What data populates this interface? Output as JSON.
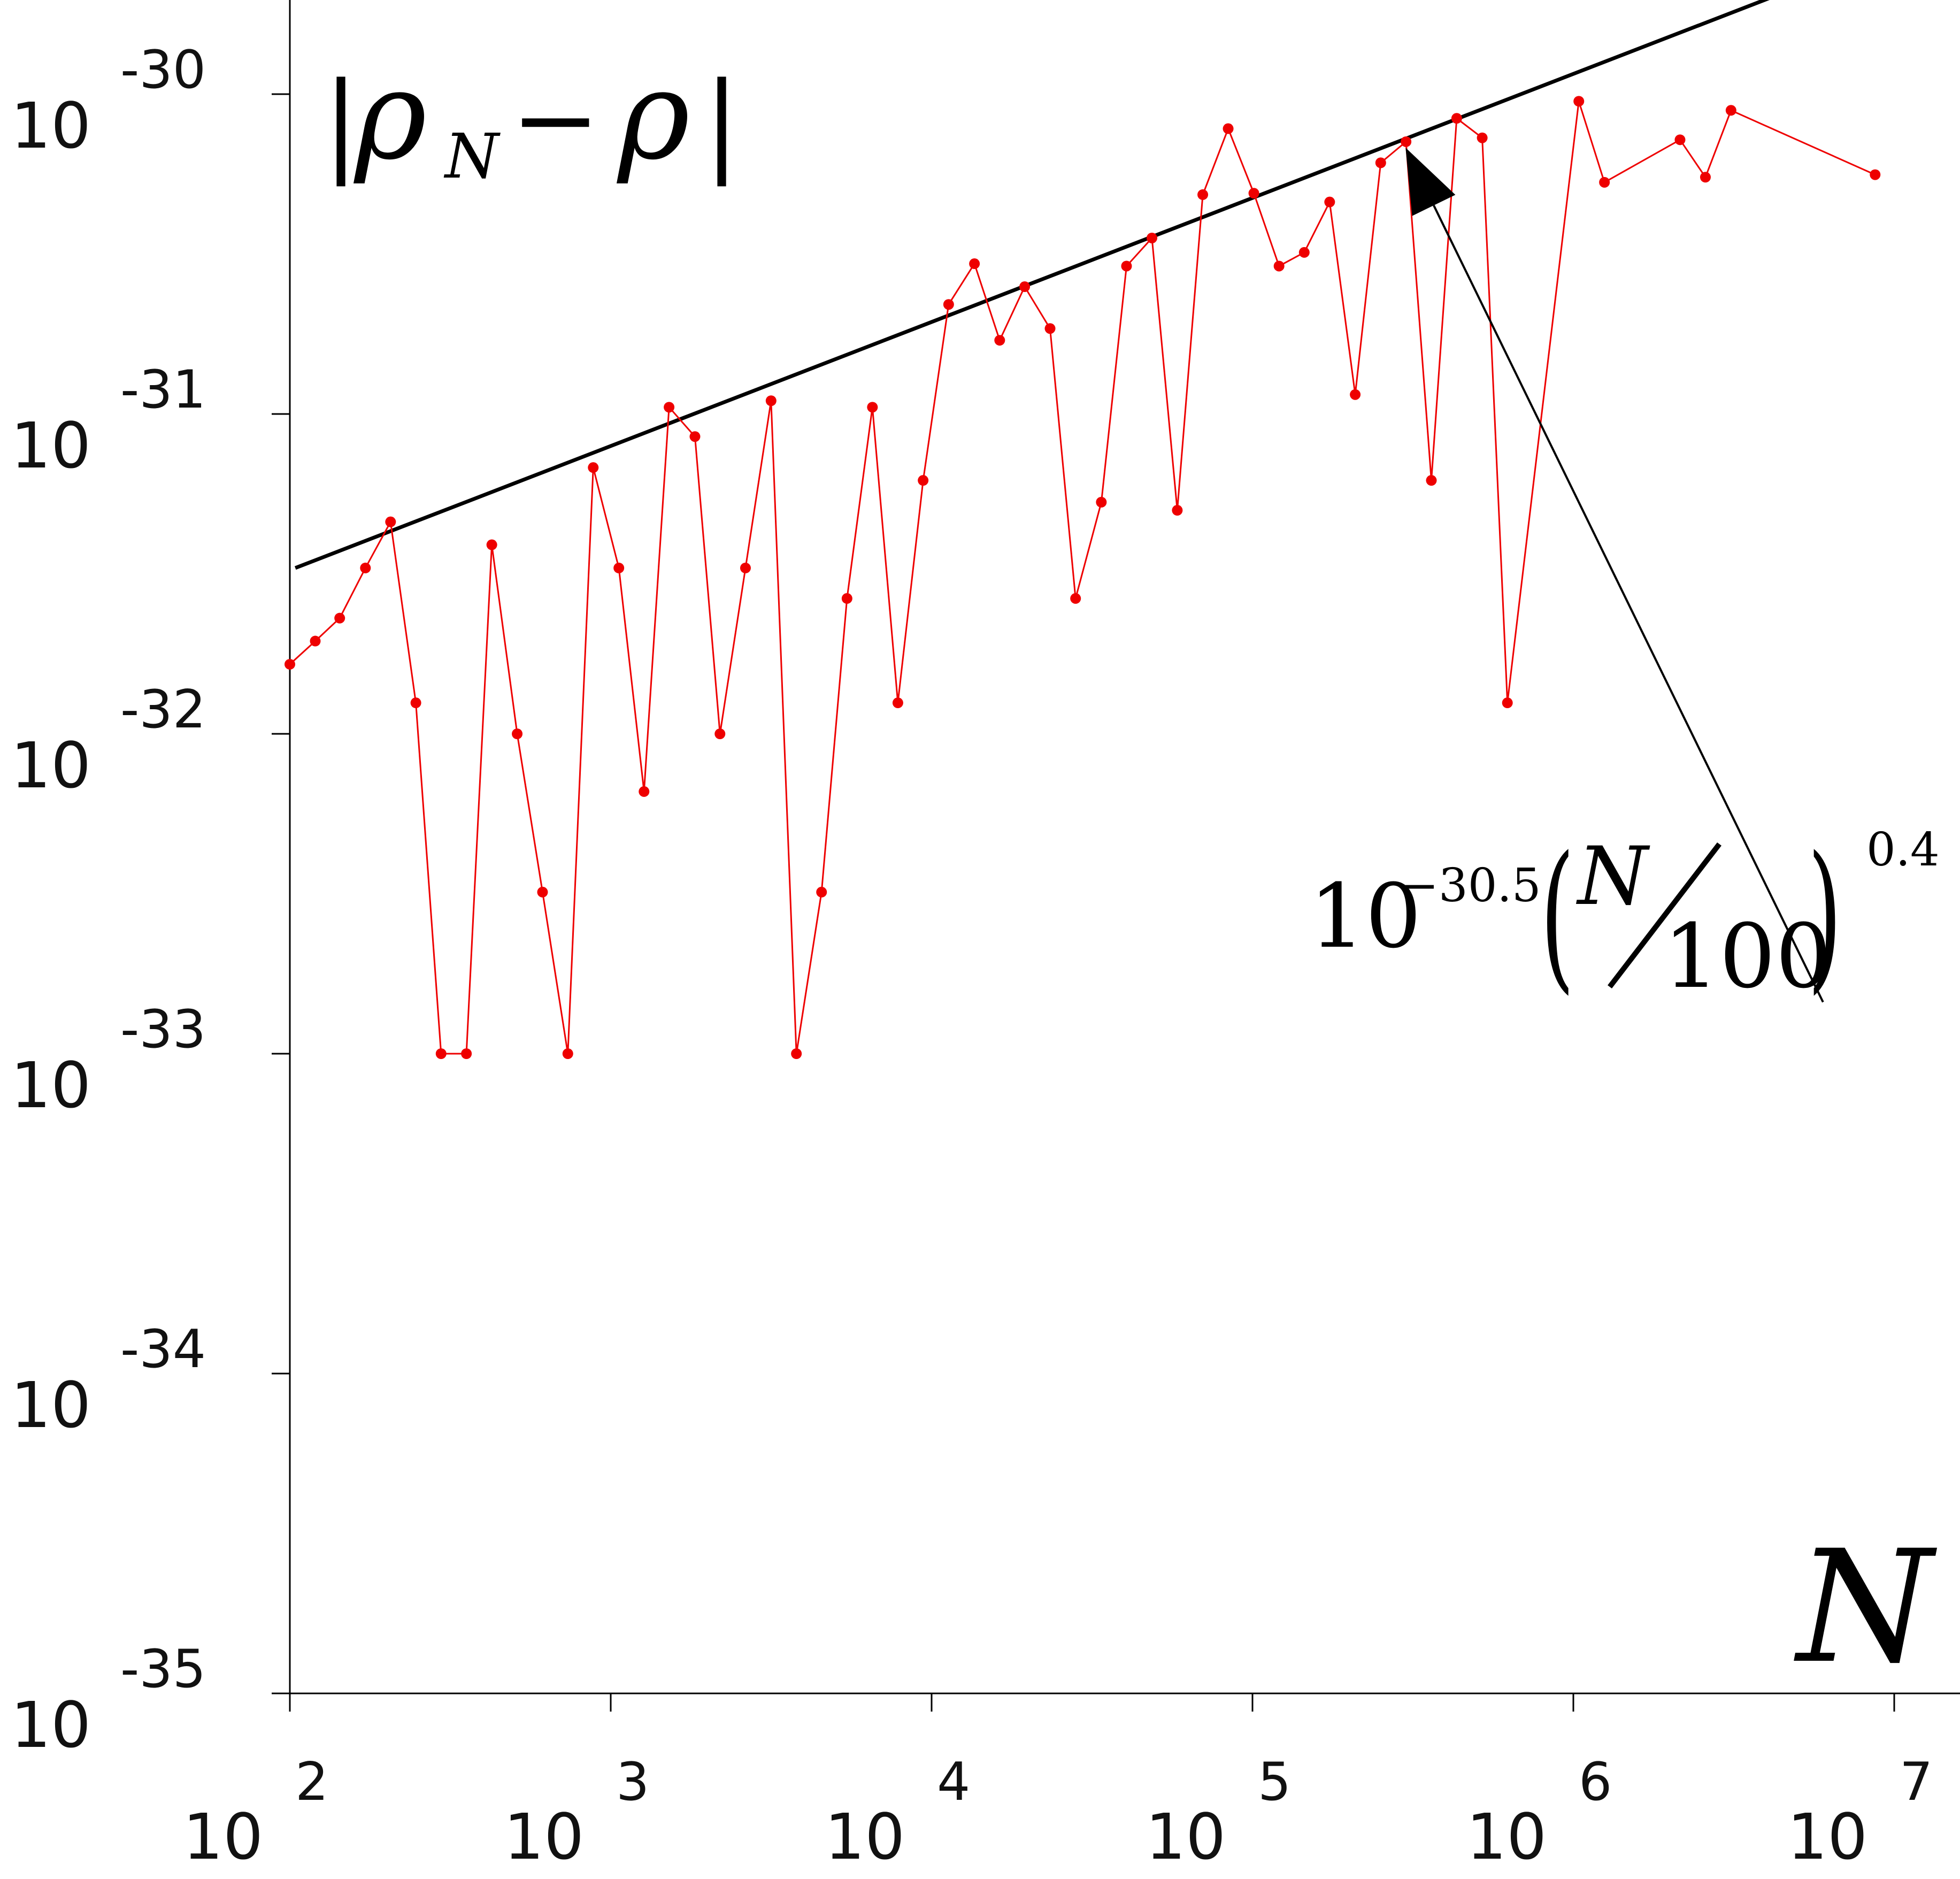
{
  "chart_data": {
    "type": "line",
    "title": "|ρ_N − ρ|",
    "title_parts": {
      "bar_left": "|",
      "rho": "ρ",
      "sub": "N",
      "minus": "−",
      "rho2": "ρ",
      "bar_right": "|"
    },
    "xlabel": "N",
    "ylabel": "",
    "x_scale": "log",
    "y_scale": "log",
    "xlim": [
      100,
      14000000
    ],
    "ylim": [
      1e-35,
      1.5e-30
    ],
    "x_ticks": [
      {
        "base": "10",
        "exp": "2",
        "value": 100
      },
      {
        "base": "10",
        "exp": "3",
        "value": 1000
      },
      {
        "base": "10",
        "exp": "4",
        "value": 10000
      },
      {
        "base": "10",
        "exp": "5",
        "value": 100000
      },
      {
        "base": "10",
        "exp": "6",
        "value": 1000000
      },
      {
        "base": "10",
        "exp": "7",
        "value": 10000000
      }
    ],
    "y_ticks": [
      {
        "base": "10",
        "exp": "-30",
        "value": 1e-30
      },
      {
        "base": "10",
        "exp": "-31",
        "value": 1e-31
      },
      {
        "base": "10",
        "exp": "-32",
        "value": 1e-32
      },
      {
        "base": "10",
        "exp": "-33",
        "value": 1e-33
      },
      {
        "base": "10",
        "exp": "-34",
        "value": 1e-34
      },
      {
        "base": "10",
        "exp": "-35",
        "value": 1e-35
      }
    ],
    "grid": false,
    "series": [
      {
        "color": "#ee0000",
        "style": "line-with-points",
        "x": [
          100,
          120,
          143,
          172,
          206,
          247,
          296,
          355,
          426,
          511,
          613,
          735,
          882,
          1060,
          1270,
          1520,
          1830,
          2190,
          2630,
          3160,
          3790,
          4540,
          5450,
          6540,
          7850,
          9410,
          11300,
          13600,
          16300,
          19500,
          23400,
          28100,
          33800,
          40500,
          48600,
          58300,
          70000,
          84000,
          101000,
          121000,
          145000,
          174000,
          209000,
          251000,
          301000,
          361000,
          433000,
          520000,
          623000,
          1040000,
          1250000,
          2150000,
          2580000,
          3100000,
          8720000
        ],
        "y": [
          1.65e-32,
          1.95e-32,
          2.3e-32,
          3.3e-32,
          4.6e-32,
          1.25e-32,
          1e-33,
          1e-33,
          3.9e-32,
          1e-32,
          3.2e-33,
          1e-33,
          6.8e-32,
          3.3e-32,
          6.6e-33,
          1.05e-31,
          8.5e-32,
          1e-32,
          3.3e-32,
          1.1e-31,
          1e-33,
          3.2e-33,
          2.65e-32,
          1.05e-31,
          1.25e-32,
          6.2e-32,
          2.2e-31,
          2.95e-31,
          1.7e-31,
          2.5e-31,
          1.85e-31,
          2.65e-32,
          5.3e-32,
          2.9e-31,
          3.55e-31,
          5e-32,
          4.85e-31,
          7.8e-31,
          4.9e-31,
          2.9e-31,
          3.2e-31,
          4.6e-31,
          1.15e-31,
          6.1e-31,
          7.1e-31,
          6.2e-32,
          8.4e-31,
          7.3e-31,
          1.25e-32,
          9.5e-31,
          5.3e-31,
          7.2e-31,
          5.5e-31,
          8.9e-31,
          5.6e-31
        ]
      },
      {
        "color": "#000000",
        "style": "line",
        "formula": "10^-30.5 (N/100)^0.4",
        "x": [
          104,
          4100000
        ],
        "y": [
          3.3e-32,
          2e-30
        ]
      }
    ],
    "annotations": [
      {
        "text_base": "10",
        "text_exp": "−30.5",
        "text_num": "N",
        "text_den": "100",
        "text_power": "0.4",
        "arrow_target": {
          "x": 300000,
          "y": 6.8e-31
        },
        "arrow_tail": {
          "x": 6000000,
          "y": 1.45e-33
        }
      }
    ]
  }
}
